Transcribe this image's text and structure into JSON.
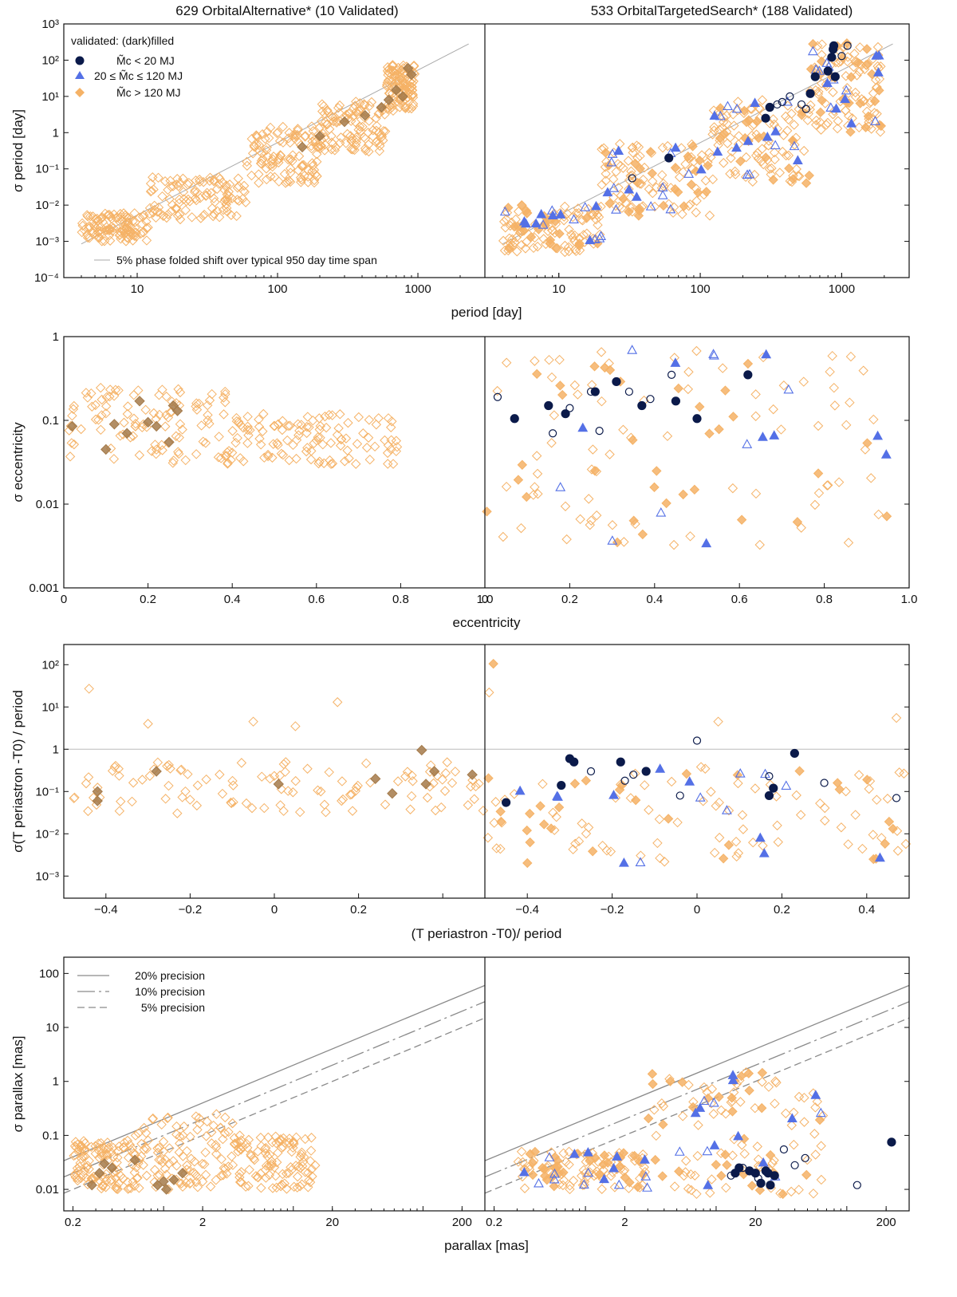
{
  "figure": {
    "left_title": "629 OrbitalAlternative* (10 Validated)",
    "right_title": "533 OrbitalTargetedSearch* (188 Validated)"
  },
  "legend": {
    "heading": "validated: (dark)filled",
    "entries": [
      "M̃c <   20 MJ",
      "20 ≤ M̃c ≤ 120 MJ",
      "M̃c > 120 MJ"
    ],
    "colors": {
      "low_mass": "#0b1a4a",
      "mid_mass": "#5470e6",
      "high_mass": "#f5b266",
      "high_mass_validated_left": "#a47a4a"
    }
  },
  "chart_data": [
    {
      "type": "scatter",
      "row": "period",
      "xlabel": "period [day]",
      "ylabel": "σ period [day]",
      "xscale": "log",
      "yscale": "log",
      "xlim": [
        3,
        3000
      ],
      "ylim": [
        0.0001,
        1000
      ],
      "xticks": [
        "10",
        "100",
        "1000"
      ],
      "yticks": [
        "10⁻⁴",
        "10⁻³",
        "10⁻²",
        "10⁻¹",
        "1",
        "10¹",
        "10²",
        "10³"
      ],
      "reference_line": {
        "label": "5% phase folded shift over typical 950 day time span",
        "x": [
          4,
          2300
        ],
        "y": [
          0.00085,
          280
        ]
      },
      "series_left": {
        "name": "OrbitalAlternative",
        "cloud": [
          {
            "x": [
              4,
              12
            ],
            "y": [
              0.001,
              0.006
            ]
          },
          {
            "x": [
              12,
              60
            ],
            "y": [
              0.004,
              0.06
            ]
          },
          {
            "x": [
              60,
              200
            ],
            "y": [
              0.04,
              1.5
            ]
          },
          {
            "x": [
              200,
              600
            ],
            "y": [
              0.3,
              8
            ]
          },
          {
            "x": [
              600,
              950
            ],
            "y": [
              4,
              80
            ]
          }
        ],
        "validated": [
          [
            150,
            0.4
          ],
          [
            200,
            0.8
          ],
          [
            300,
            2
          ],
          [
            420,
            3
          ],
          [
            550,
            5
          ],
          [
            700,
            15
          ],
          [
            780,
            10
          ],
          [
            850,
            60
          ],
          [
            900,
            40
          ],
          [
            620,
            8
          ]
        ]
      },
      "series_right": {
        "name": "OrbitalTargetedSearch",
        "cloud": [
          {
            "x": [
              4,
              20
            ],
            "y": [
              0.0005,
              0.01
            ]
          },
          {
            "x": [
              20,
              120
            ],
            "y": [
              0.005,
              0.5
            ]
          },
          {
            "x": [
              120,
              600
            ],
            "y": [
              0.04,
              8
            ]
          },
          {
            "x": [
              600,
              1900
            ],
            "y": [
              1,
              300
            ]
          }
        ],
        "low_mass_filled": [
          [
            60,
            0.2
          ],
          [
            290,
            2.5
          ],
          [
            310,
            5
          ],
          [
            600,
            12
          ],
          [
            650,
            35
          ],
          [
            800,
            50
          ],
          [
            850,
            120
          ],
          [
            870,
            200
          ],
          [
            880,
            250
          ],
          [
            900,
            35
          ]
        ],
        "low_mass_open": [
          [
            33,
            0.055
          ],
          [
            350,
            6
          ],
          [
            380,
            7
          ],
          [
            430,
            10
          ],
          [
            520,
            6
          ],
          [
            560,
            4.5
          ],
          [
            1100,
            250
          ],
          [
            1000,
            130
          ]
        ]
      }
    },
    {
      "type": "scatter",
      "row": "eccentricity",
      "xlabel": "eccentricity",
      "ylabel": "σ eccentricity",
      "xscale": "linear",
      "yscale": "log",
      "xlim": [
        0,
        1
      ],
      "ylim": [
        0.001,
        1
      ],
      "xticks": [
        "0",
        "0.2",
        "0.4",
        "0.6",
        "0.8",
        "1.0"
      ],
      "yticks": [
        "0.001",
        "0.01",
        "0.1",
        "1"
      ],
      "series_left": {
        "name": "OrbitalAlternative",
        "cloud": [
          {
            "x": [
              0.01,
              0.4
            ],
            "y": [
              0.03,
              0.25
            ]
          },
          {
            "x": [
              0.4,
              0.8
            ],
            "y": [
              0.03,
              0.12
            ]
          }
        ],
        "validated": [
          [
            0.02,
            0.085
          ],
          [
            0.1,
            0.045
          ],
          [
            0.12,
            0.09
          ],
          [
            0.15,
            0.07
          ],
          [
            0.18,
            0.17
          ],
          [
            0.2,
            0.095
          ],
          [
            0.22,
            0.085
          ],
          [
            0.25,
            0.055
          ],
          [
            0.26,
            0.15
          ],
          [
            0.27,
            0.13
          ]
        ]
      },
      "series_right": {
        "name": "OrbitalTargetedSearch",
        "cloud": [
          {
            "x": [
              0.0,
              0.95
            ],
            "y": [
              0.0025,
              0.7
            ]
          }
        ],
        "low_mass_filled": [
          [
            0.07,
            0.105
          ],
          [
            0.15,
            0.15
          ],
          [
            0.19,
            0.12
          ],
          [
            0.26,
            0.22
          ],
          [
            0.31,
            0.29
          ],
          [
            0.37,
            0.15
          ],
          [
            0.45,
            0.17
          ],
          [
            0.5,
            0.105
          ],
          [
            0.62,
            0.35
          ]
        ],
        "low_mass_open": [
          [
            0.03,
            0.19
          ],
          [
            0.16,
            0.07
          ],
          [
            0.2,
            0.14
          ],
          [
            0.25,
            0.22
          ],
          [
            0.27,
            0.075
          ],
          [
            0.34,
            0.22
          ],
          [
            0.39,
            0.18
          ],
          [
            0.44,
            0.35
          ]
        ]
      }
    },
    {
      "type": "scatter",
      "row": "periastron",
      "xlabel": "(T periastron -T0)/ period",
      "ylabel": "σ(T periastron -T0) / period",
      "xscale": "linear",
      "yscale": "log",
      "xlim": [
        -0.5,
        0.5
      ],
      "ylim": [
        0.0003,
        300
      ],
      "xticks": [
        "−0.4",
        "−0.2",
        "0",
        "0.2",
        "0.4"
      ],
      "yticks": [
        "10⁻³",
        "10⁻²",
        "10⁻¹",
        "1",
        "10¹",
        "10²"
      ],
      "reference_line": {
        "label": "",
        "y": 1
      },
      "series_left": {
        "name": "OrbitalAlternative",
        "cloud": [
          {
            "x": [
              -0.5,
              0.5
            ],
            "y": [
              0.03,
              0.5
            ]
          }
        ],
        "outliers": [
          [
            -0.44,
            27
          ],
          [
            0.15,
            13
          ],
          [
            -0.3,
            4
          ],
          [
            0.05,
            3.5
          ],
          [
            -0.05,
            4.5
          ]
        ],
        "validated": [
          [
            -0.42,
            0.06
          ],
          [
            -0.42,
            0.1
          ],
          [
            -0.28,
            0.3
          ],
          [
            0.01,
            0.15
          ],
          [
            0.28,
            0.09
          ],
          [
            0.35,
            0.95
          ],
          [
            0.36,
            0.15
          ],
          [
            0.38,
            0.3
          ],
          [
            0.47,
            0.25
          ],
          [
            0.24,
            0.2
          ]
        ]
      },
      "series_right": {
        "name": "OrbitalTargetedSearch",
        "cloud": [
          {
            "x": [
              -0.5,
              0.5
            ],
            "y": [
              0.002,
              0.4
            ]
          }
        ],
        "outliers": [
          [
            -0.48,
            105
          ],
          [
            -0.49,
            22
          ],
          [
            0.05,
            4.5
          ],
          [
            0.47,
            5.5
          ]
        ],
        "low_mass_filled": [
          [
            -0.45,
            0.055
          ],
          [
            -0.32,
            0.14
          ],
          [
            -0.3,
            0.6
          ],
          [
            -0.29,
            0.5
          ],
          [
            -0.18,
            0.5
          ],
          [
            -0.12,
            0.3
          ],
          [
            0.17,
            0.08
          ],
          [
            0.18,
            0.12
          ],
          [
            0.23,
            0.8
          ]
        ],
        "low_mass_open": [
          [
            -0.25,
            0.3
          ],
          [
            -0.17,
            0.18
          ],
          [
            -0.15,
            0.25
          ],
          [
            -0.04,
            0.08
          ],
          [
            0.0,
            1.6
          ],
          [
            0.17,
            0.23
          ],
          [
            0.3,
            0.16
          ],
          [
            0.47,
            0.07
          ]
        ]
      }
    },
    {
      "type": "scatter",
      "row": "parallax",
      "xlabel": "parallax [mas]",
      "ylabel": "σ parallax [mas]",
      "xscale": "log",
      "yscale": "log",
      "xlim": [
        0.17,
        300
      ],
      "ylim": [
        0.004,
        200
      ],
      "xticks": [
        "0.2",
        "2",
        "20",
        "200"
      ],
      "yticks": [
        "0.01",
        "0.1",
        "1",
        "10",
        "100"
      ],
      "precision_lines": [
        {
          "label": "20% precision",
          "fraction": 0.2,
          "dash": "solid"
        },
        {
          "label": "10% precision",
          "fraction": 0.1,
          "dash": "dashdot"
        },
        {
          "label": "5% precision",
          "fraction": 0.05,
          "dash": "dashed"
        }
      ],
      "series_left": {
        "name": "OrbitalAlternative",
        "cloud": [
          {
            "x": [
              0.2,
              0.6
            ],
            "y": [
              0.01,
              0.08
            ]
          },
          {
            "x": [
              0.6,
              3.5
            ],
            "y": [
              0.01,
              0.25
            ]
          },
          {
            "x": [
              3.5,
              15
            ],
            "y": [
              0.01,
              0.1
            ]
          }
        ],
        "validated": [
          [
            0.28,
            0.012
          ],
          [
            0.32,
            0.02
          ],
          [
            0.35,
            0.03
          ],
          [
            0.4,
            0.025
          ],
          [
            0.6,
            0.035
          ],
          [
            0.9,
            0.012
          ],
          [
            1.0,
            0.014
          ],
          [
            1.05,
            0.01
          ],
          [
            1.4,
            0.02
          ],
          [
            1.2,
            0.015
          ]
        ]
      },
      "series_right": {
        "name": "OrbitalTargetedSearch",
        "cloud": [
          {
            "x": [
              0.3,
              3
            ],
            "y": [
              0.01,
              0.05
            ]
          },
          {
            "x": [
              3,
              80
            ],
            "y": [
              0.008,
              1.5
            ]
          }
        ],
        "low_mass_filled": [
          [
            14,
            0.02
          ],
          [
            15,
            0.025
          ],
          [
            18,
            0.022
          ],
          [
            20,
            0.02
          ],
          [
            22,
            0.013
          ],
          [
            24,
            0.022
          ],
          [
            25,
            0.02
          ],
          [
            26,
            0.012
          ],
          [
            28,
            0.018
          ],
          [
            220,
            0.075
          ]
        ],
        "low_mass_open": [
          [
            13,
            0.018
          ],
          [
            16,
            0.025
          ],
          [
            21,
            0.016
          ],
          [
            33,
            0.055
          ],
          [
            40,
            0.028
          ],
          [
            48,
            0.038
          ],
          [
            120,
            0.012
          ]
        ]
      }
    }
  ]
}
